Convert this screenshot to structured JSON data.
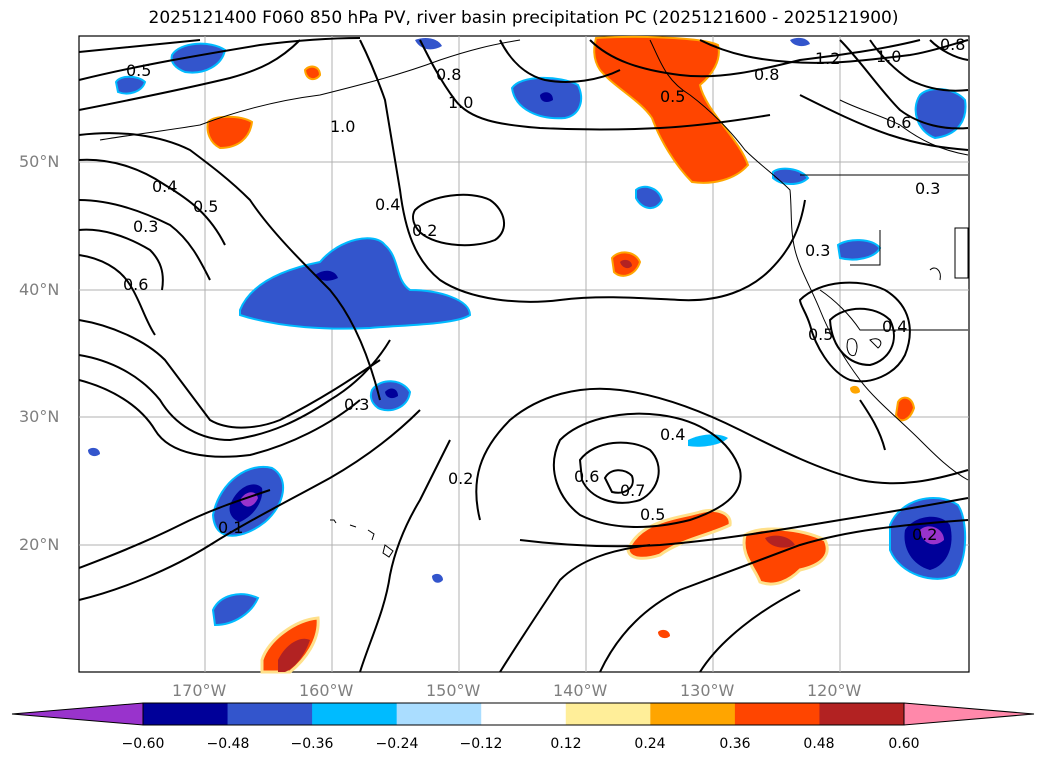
{
  "title": "2025121400 F060 850 hPa PV, river basin precipitation PC (2025121600 - 2025121900)",
  "map": {
    "lat_labels": [
      "50°N",
      "40°N",
      "30°N",
      "20°N"
    ],
    "lon_labels": [
      "170°W",
      "160°W",
      "150°W",
      "140°W",
      "130°W",
      "120°W"
    ],
    "contour_labels": [
      "0.5",
      "0.8",
      "1.0",
      "1.0",
      "0.5",
      "0.8",
      "1.2",
      "1.0",
      "0.8",
      "0.6",
      "0.4",
      "0.5",
      "0.3",
      "0.6",
      "0.4",
      "0.2",
      "0.3",
      "0.3",
      "0.4",
      "0.5",
      "0.3",
      "0.2",
      "0.4",
      "0.6",
      "0.7",
      "0.5",
      "0.1",
      "0.2"
    ]
  },
  "colorbar": {
    "ticks": [
      "−0.60",
      "−0.48",
      "−0.36",
      "−0.24",
      "−0.12",
      "0.12",
      "0.24",
      "0.36",
      "0.48",
      "0.60"
    ],
    "colors": [
      "#9933cc",
      "#000099",
      "#3355cc",
      "#00bbff",
      "#aaddff",
      "#ffffff",
      "#ffee99",
      "#ffa500",
      "#ff4500",
      "#b22222",
      "#ff88aa"
    ]
  }
}
